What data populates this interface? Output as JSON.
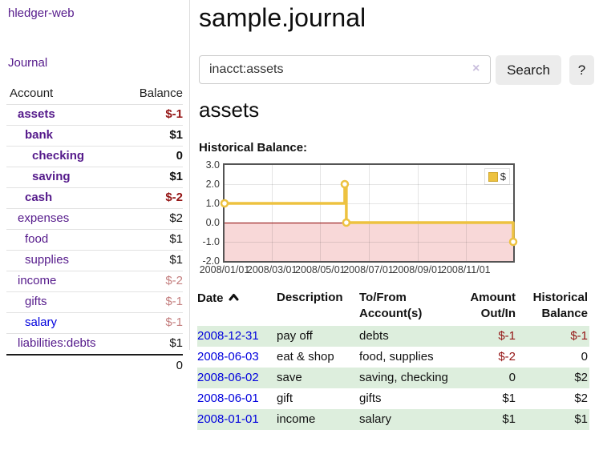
{
  "sidebar": {
    "brand": "hledger-web",
    "nav": {
      "journal": "Journal"
    },
    "accounts_table": {
      "headers": {
        "account": "Account",
        "balance": "Balance"
      },
      "rows": [
        {
          "account": "assets",
          "balance": "$-1",
          "depth": 1,
          "bold": true,
          "balance_style": "neg"
        },
        {
          "account": "bank",
          "balance": "$1",
          "depth": 2,
          "bold": true,
          "balance_style": "pos"
        },
        {
          "account": "checking",
          "balance": "0",
          "depth": 3,
          "bold": true,
          "balance_style": "pos"
        },
        {
          "account": "saving",
          "balance": "$1",
          "depth": 3,
          "bold": true,
          "balance_style": "pos"
        },
        {
          "account": "cash",
          "balance": "$-2",
          "depth": 2,
          "bold": true,
          "balance_style": "neg"
        },
        {
          "account": "expenses",
          "balance": "$2",
          "depth": 1,
          "bold": false,
          "balance_style": "pos"
        },
        {
          "account": "food",
          "balance": "$1",
          "depth": 2,
          "bold": false,
          "balance_style": "pos"
        },
        {
          "account": "supplies",
          "balance": "$1",
          "depth": 2,
          "bold": false,
          "balance_style": "pos"
        },
        {
          "account": "income",
          "balance": "$-2",
          "depth": 1,
          "bold": false,
          "balance_style": "muted-neg"
        },
        {
          "account": "gifts",
          "balance": "$-1",
          "depth": 2,
          "bold": false,
          "balance_style": "muted-neg"
        },
        {
          "account": "salary",
          "balance": "$-1",
          "depth": 2,
          "bold": false,
          "balance_style": "muted-neg",
          "link_color": "blue"
        },
        {
          "account": "liabilities:debts",
          "balance": "$1",
          "depth": 1,
          "bold": false,
          "balance_style": "pos"
        }
      ],
      "total": "0"
    }
  },
  "header": {
    "title": "sample.journal"
  },
  "search": {
    "query": "inacct:assets",
    "clear_icon": "×",
    "search_button": "Search",
    "help_button": "?"
  },
  "main": {
    "account_heading": "assets",
    "chart_label": "Historical Balance:"
  },
  "chart_data": {
    "type": "line",
    "title": "Historical Balance:",
    "legend_entries": [
      "$"
    ],
    "legend_position": "top-right",
    "series": [
      {
        "name": "$",
        "color": "#edc240",
        "step": "after",
        "points": [
          [
            "2008-01-01",
            1
          ],
          [
            "2008-06-01",
            2
          ],
          [
            "2008-06-03",
            0
          ],
          [
            "2008-12-31",
            -1
          ]
        ]
      }
    ],
    "x_ticks": [
      {
        "label": "2008/01/01",
        "date": "2008-01-01"
      },
      {
        "label": "2008/03/01",
        "date": "2008-03-01"
      },
      {
        "label": "2008/05/01",
        "date": "2008-05-01"
      },
      {
        "label": "2008/07/01",
        "date": "2008-07-01"
      },
      {
        "label": "2008/09/01",
        "date": "2008-09-01"
      },
      {
        "label": "2008/11/01",
        "date": "2008-11-01"
      }
    ],
    "y_ticks": [
      {
        "label": "3.0",
        "value": 3
      },
      {
        "label": "2.0",
        "value": 2
      },
      {
        "label": "1.0",
        "value": 1
      },
      {
        "label": "0.0",
        "value": 0
      },
      {
        "label": "-1.0",
        "value": -1
      },
      {
        "label": "-2.0",
        "value": -2
      }
    ],
    "xlim": [
      "2008-01-01",
      "2008-12-31"
    ],
    "ylim": [
      -2,
      3
    ],
    "grid": true,
    "negative_region_color": "#f8d8d8",
    "zero_line_color": "#8b0000"
  },
  "register": {
    "headers": {
      "date": "Date",
      "description": "Description",
      "accounts": "To/From Account(s)",
      "amount": "Amount Out/In",
      "balance": "Historical Balance"
    },
    "sort_icon": "chevron-up",
    "rows": [
      {
        "date": "2008-12-31",
        "description": "pay off",
        "accounts": "debts",
        "amount": "$-1",
        "balance": "$-1",
        "amount_negative": true,
        "balance_negative": true
      },
      {
        "date": "2008-06-03",
        "description": "eat & shop",
        "accounts": "food, supplies",
        "amount": "$-2",
        "balance": "0",
        "amount_negative": true,
        "balance_negative": false
      },
      {
        "date": "2008-06-02",
        "description": "save",
        "accounts": "saving, checking",
        "amount": "0",
        "balance": "$2",
        "amount_negative": false,
        "balance_negative": false
      },
      {
        "date": "2008-06-01",
        "description": "gift",
        "accounts": "gifts",
        "amount": "$1",
        "balance": "$2",
        "amount_negative": false,
        "balance_negative": false
      },
      {
        "date": "2008-01-01",
        "description": "income",
        "accounts": "salary",
        "amount": "$1",
        "balance": "$1",
        "amount_negative": false,
        "balance_negative": false
      }
    ]
  }
}
